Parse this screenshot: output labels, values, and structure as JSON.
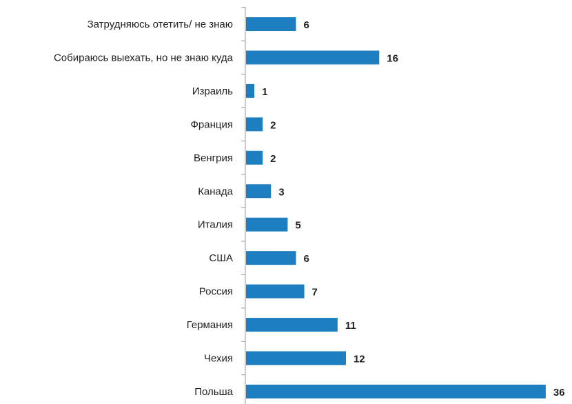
{
  "chart_data": {
    "type": "bar",
    "orientation": "horizontal",
    "categories": [
      "Затрудняюсь отетить/ не знаю",
      "Собираюсь выехать, но не знаю куда",
      "Израиль",
      "Франция",
      "Венгрия",
      "Канада",
      "Италия",
      "США",
      "Россия",
      "Германия",
      "Чехия",
      "Польша"
    ],
    "values": [
      6,
      16,
      1,
      2,
      2,
      3,
      5,
      6,
      7,
      11,
      12,
      36
    ],
    "data_labels": [
      "6",
      "16",
      "1",
      "2",
      "2",
      "3",
      "5",
      "6",
      "7",
      "11",
      "12",
      "36"
    ],
    "title": "",
    "xlabel": "",
    "ylabel": "",
    "xlim": [
      0,
      36
    ],
    "grid": false,
    "legend": "none",
    "bar_color": "#1e7fc0",
    "axis_color": "#999999"
  }
}
